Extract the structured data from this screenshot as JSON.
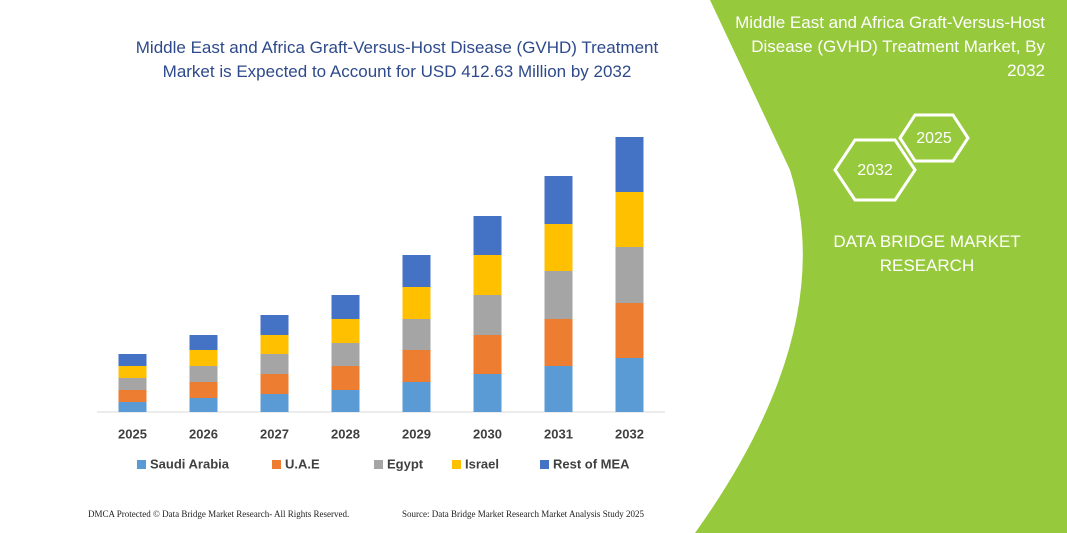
{
  "chart_data": {
    "type": "bar",
    "stacked": true,
    "title": "Middle East and Africa Graft-Versus-Host Disease (GVHD) Treatment Market is Expected to Account for USD 412.63 Million by 2032",
    "categories": [
      "2025",
      "2026",
      "2027",
      "2028",
      "2029",
      "2030",
      "2031",
      "2032"
    ],
    "series": [
      {
        "name": "Saudi Arabia",
        "color": "#5b9bd5",
        "values": [
          10,
          14,
          18,
          22,
          30,
          38,
          46,
          54
        ]
      },
      {
        "name": "U.A.E",
        "color": "#ed7d31",
        "values": [
          12,
          16,
          20,
          24,
          32,
          39,
          47,
          55
        ]
      },
      {
        "name": "Egypt",
        "color": "#a5a5a5",
        "values": [
          12,
          16,
          20,
          23,
          31,
          40,
          48,
          56
        ]
      },
      {
        "name": "Israel",
        "color": "#ffc000",
        "values": [
          12,
          16,
          19,
          24,
          32,
          40,
          47,
          55
        ]
      },
      {
        "name": "Rest of MEA",
        "color": "#4472c4",
        "values": [
          12,
          15,
          20,
          24,
          32,
          39,
          48,
          55
        ]
      }
    ]
  },
  "panel": {
    "title": "Middle East and Africa Graft-Versus-Host Disease (GVHD)  Treatment Market, By 2032",
    "hex_back": "2025",
    "hex_front": "2032",
    "brand": "DATA BRIDGE MARKET RESEARCH"
  },
  "footer": {
    "left": "DMCA Protected © Data Bridge Market Research-  All Rights Reserved.",
    "right": "Source: Data Bridge Market Research  Market Analysis Study 2025"
  }
}
